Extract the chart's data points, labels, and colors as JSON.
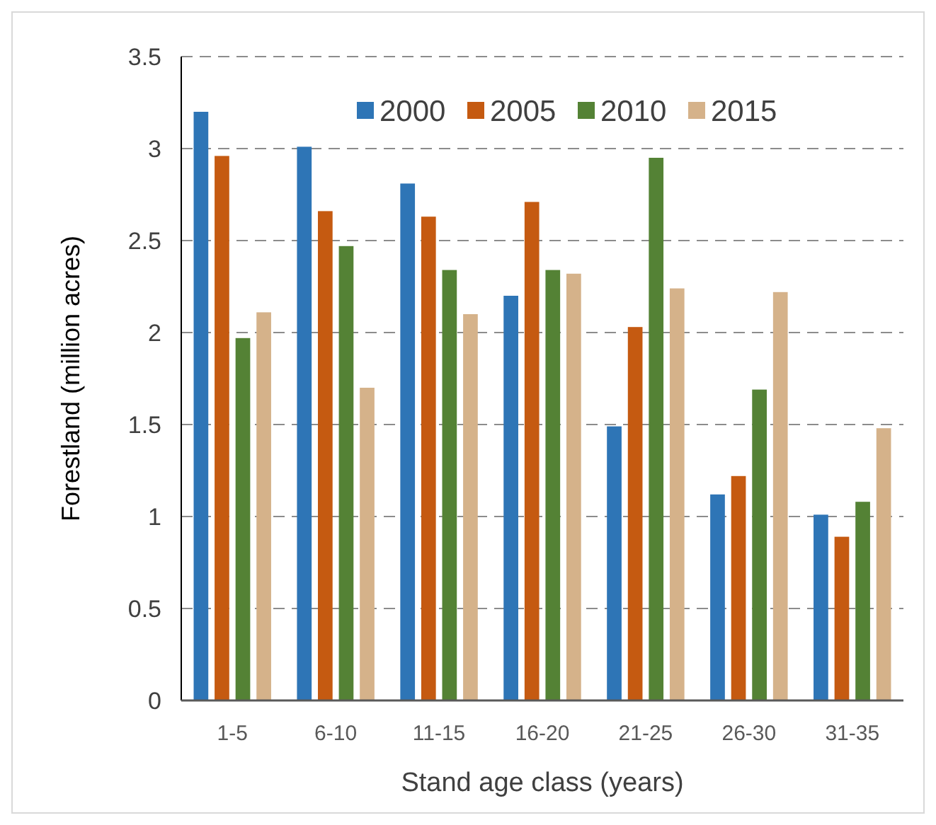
{
  "chart_data": {
    "type": "bar",
    "xlabel": "Stand age class (years)",
    "ylabel": "Forestland  (million acres)",
    "categories": [
      "1-5",
      "6-10",
      "11-15",
      "16-20",
      "21-25",
      "26-30",
      "31-35"
    ],
    "series": [
      {
        "name": "2000",
        "color": "#2e75b6",
        "values": [
          3.2,
          3.01,
          2.81,
          2.2,
          1.49,
          1.12,
          1.01
        ]
      },
      {
        "name": "2005",
        "color": "#c55a11",
        "values": [
          2.96,
          2.66,
          2.63,
          2.71,
          2.03,
          1.22,
          0.89
        ]
      },
      {
        "name": "2010",
        "color": "#548235",
        "values": [
          1.97,
          2.47,
          2.34,
          2.34,
          2.95,
          1.69,
          1.08
        ]
      },
      {
        "name": "2015",
        "color": "#d5b28a",
        "values": [
          2.11,
          1.7,
          2.1,
          2.32,
          2.24,
          2.22,
          1.48
        ]
      }
    ],
    "ylim": [
      0,
      3.5
    ],
    "yticks": [
      0,
      0.5,
      1,
      1.5,
      2,
      2.5,
      3,
      3.5
    ],
    "grid": "y",
    "legend": "top"
  }
}
